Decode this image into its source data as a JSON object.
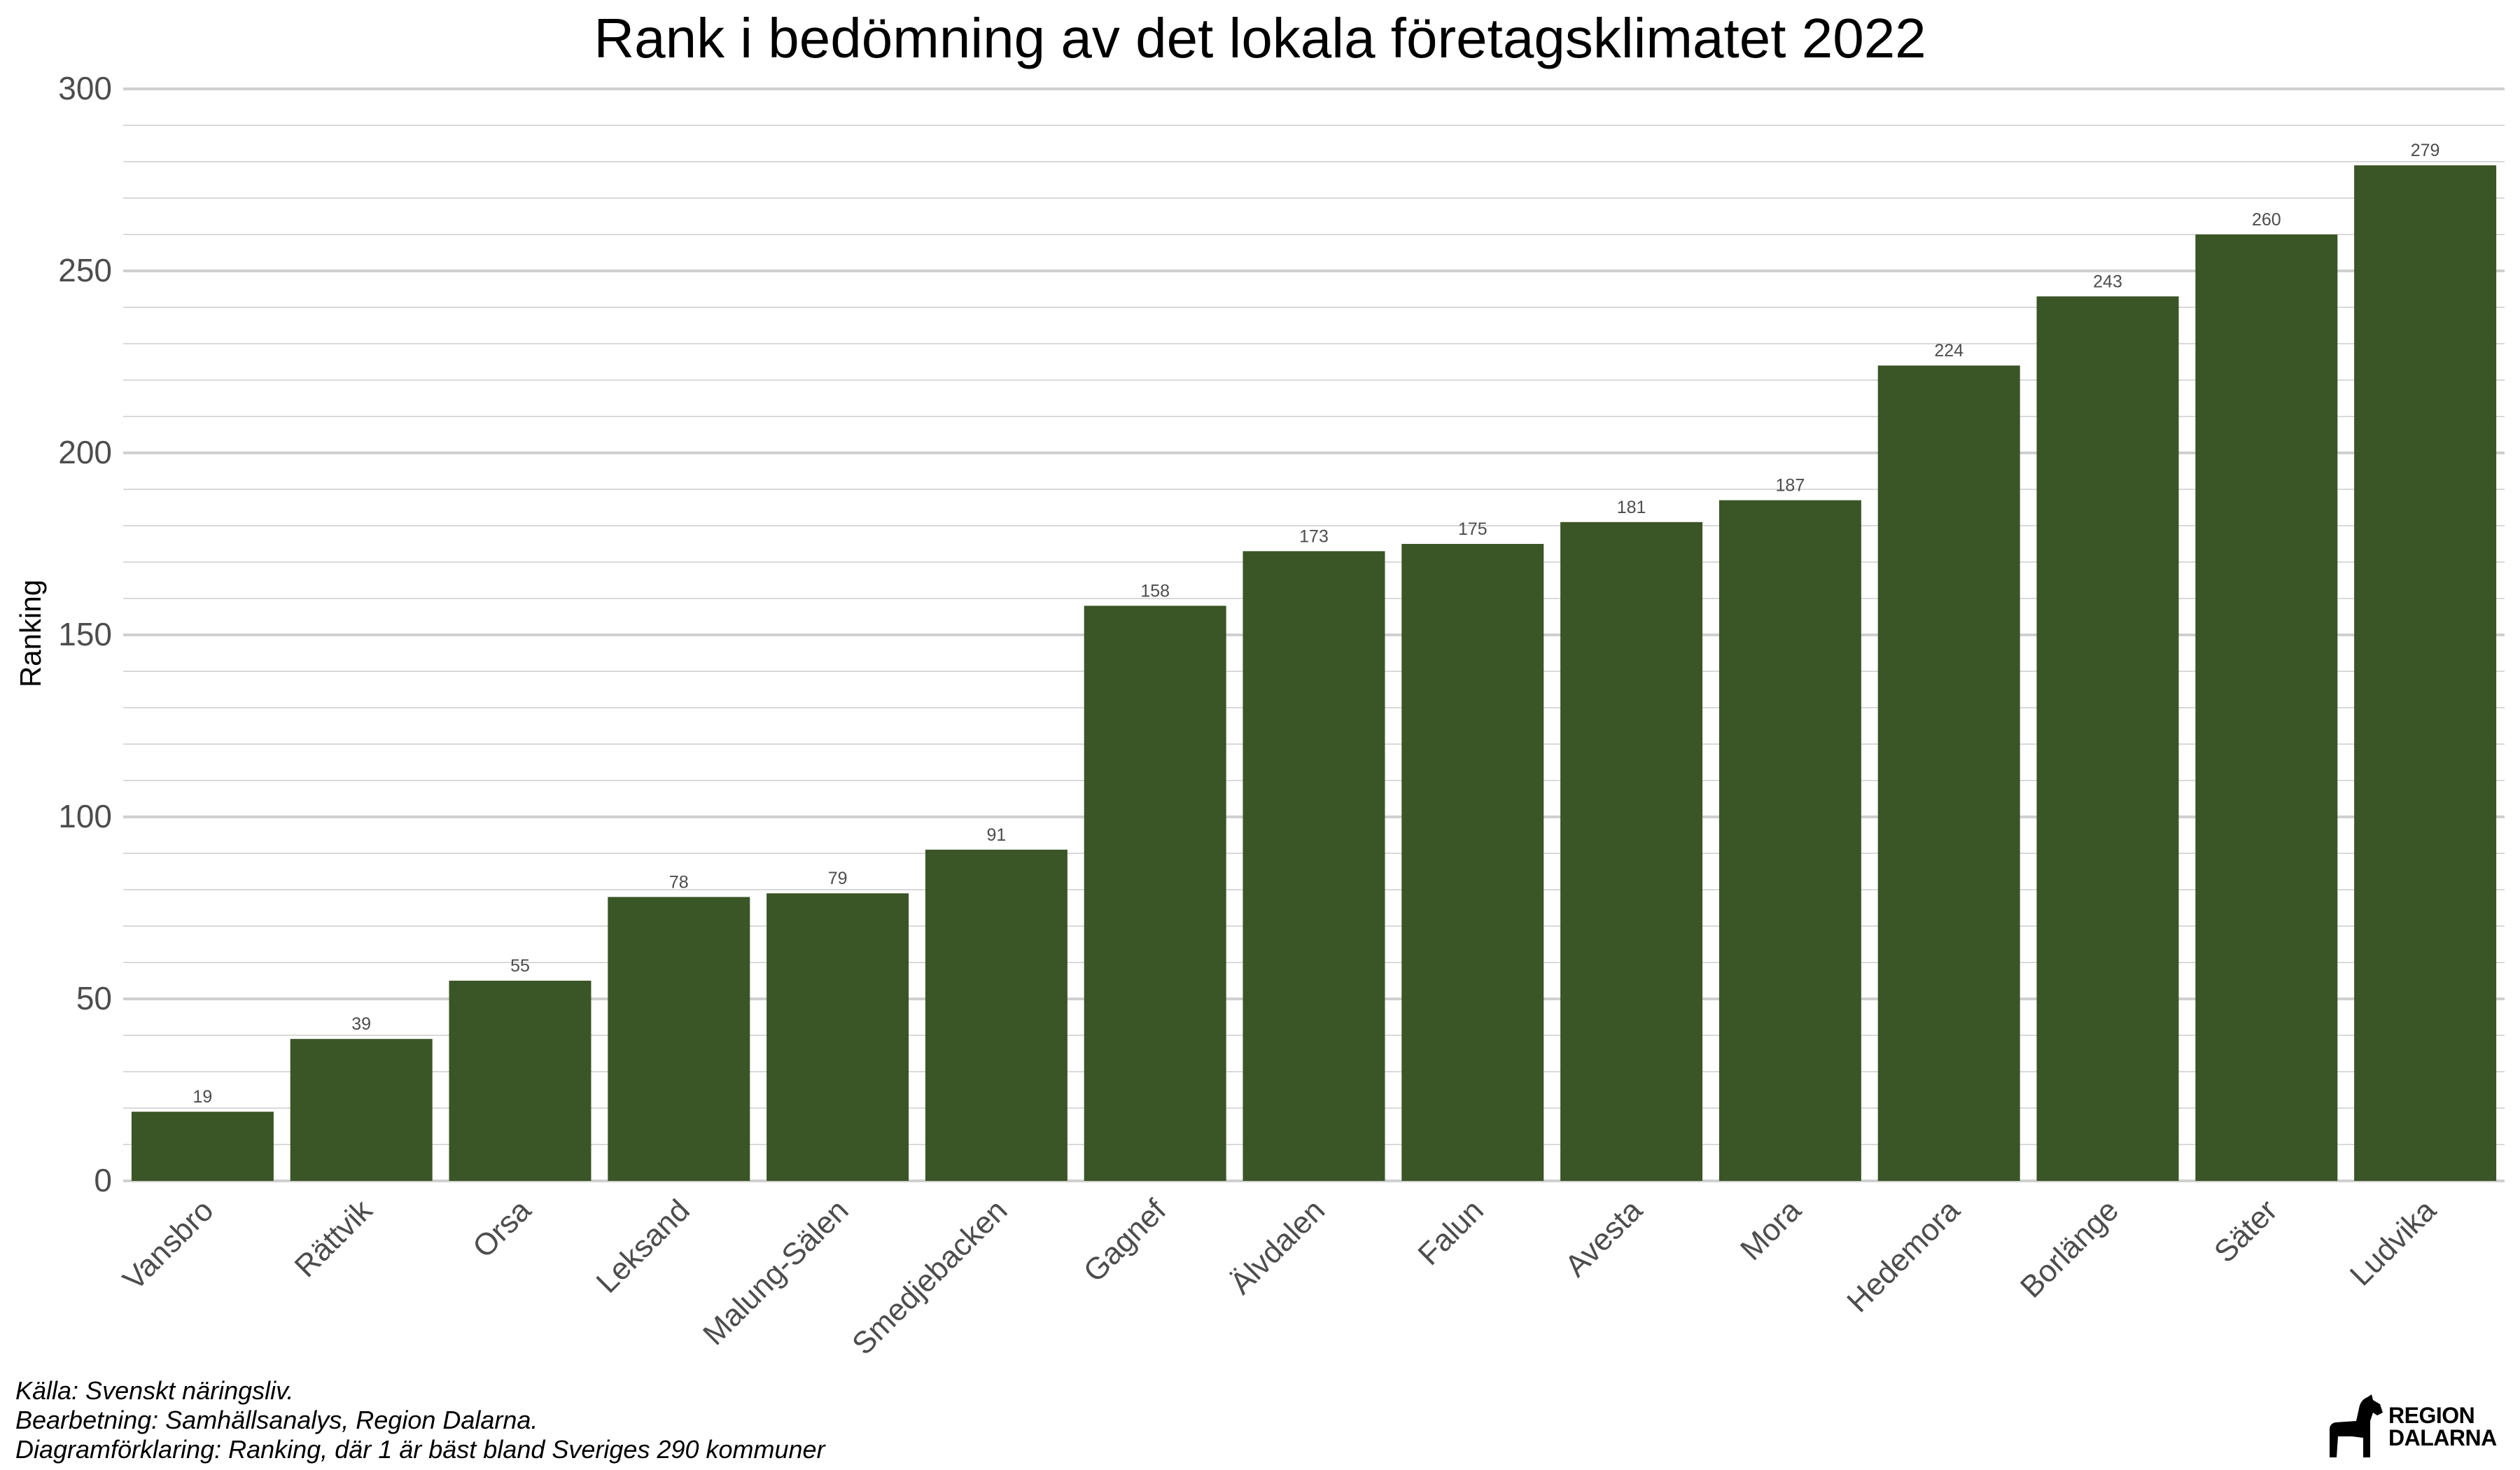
{
  "chart_data": {
    "type": "bar",
    "title": "Rank i bedömning av det lokala företagsklimatet 2022",
    "xlabel": "",
    "ylabel": "Ranking",
    "ylim": [
      0,
      300
    ],
    "yticks": [
      "0",
      "50",
      "100",
      "150",
      "200",
      "250",
      "300"
    ],
    "grid": true,
    "bar_color": "#3a5526",
    "categories": [
      "Vansbro",
      "Rättvik",
      "Orsa",
      "Leksand",
      "Malung-Sälen",
      "Smedjebacken",
      "Gagnef",
      "Älvdalen",
      "Falun",
      "Avesta",
      "Mora",
      "Hedemora",
      "Borlänge",
      "Säter",
      "Ludvika"
    ],
    "values": [
      19,
      39,
      55,
      78,
      79,
      91,
      158,
      173,
      175,
      181,
      187,
      224,
      243,
      260,
      279
    ],
    "data_labels": [
      "19",
      "39",
      "55",
      "78",
      "79",
      "91",
      "158",
      "173",
      "175",
      "181",
      "187",
      "224",
      "243",
      "260",
      "279"
    ]
  },
  "caption": {
    "line1": "Källa: Svenskt näringsliv.",
    "line2": "Bearbetning: Samhällsanalys, Region Dalarna.",
    "line3": "Diagramförklaring: Ranking, där 1 är bäst bland Sveriges 290 kommuner"
  },
  "logo": {
    "line1": "REGION",
    "line2": "DALARNA",
    "icon": "dalecarlian-horse-icon"
  }
}
